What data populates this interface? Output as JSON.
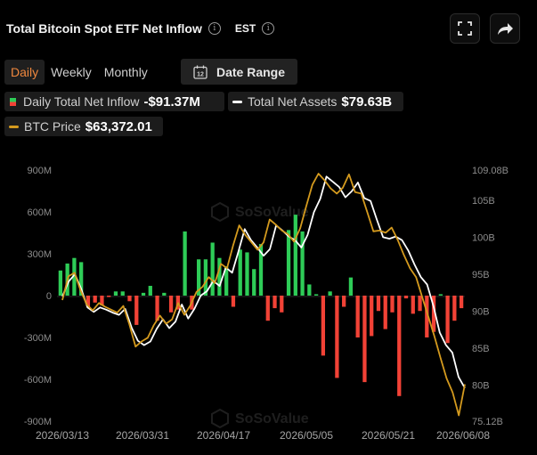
{
  "header": {
    "title": "Total Bitcoin Spot ETF Net Inflow",
    "timezone": "EST"
  },
  "tabs": [
    {
      "label": "Daily",
      "active": true
    },
    {
      "label": "Weekly",
      "active": false
    },
    {
      "label": "Monthly",
      "active": false
    }
  ],
  "date_range_label": "Date Range",
  "calendar_day": "12",
  "legend": {
    "inflow_label": "Daily Total Net Inflow",
    "inflow_value": "-$91.37M",
    "assets_label": "Total Net Assets",
    "assets_value": "$79.63B",
    "price_label": "BTC Price",
    "price_value": "$63,372.01"
  },
  "watermark": "SoSoValue",
  "colors": {
    "positive": "#2ecc57",
    "negative": "#f24236",
    "assets_line": "#ffffff",
    "price_line": "#d49a1e",
    "active_tab": "#f0883e"
  },
  "chart_data": {
    "type": "bar",
    "x_tick_labels": [
      "2026/03/13",
      "2026/03/31",
      "2026/04/17",
      "2026/05/05",
      "2026/05/21",
      "2026/06/08"
    ],
    "left_axis": {
      "label": "",
      "ticks": [
        "900M",
        "600M",
        "300M",
        "0",
        "-300M",
        "-600M",
        "-900M"
      ],
      "range": [
        -900,
        900
      ],
      "unit": "M"
    },
    "right_axis": {
      "label": "",
      "ticks": [
        "109.08B",
        "105B",
        "100B",
        "95B",
        "90B",
        "85B",
        "80B",
        "75.12B"
      ],
      "range": [
        75.12,
        109.08
      ],
      "unit": "B"
    },
    "series": [
      {
        "name": "Daily Total Net Inflow",
        "type": "bar",
        "axis": "left",
        "values": [
          180,
          230,
          270,
          240,
          -80,
          -50,
          -70,
          -10,
          30,
          30,
          -40,
          -210,
          20,
          70,
          -180,
          20,
          -120,
          -100,
          460,
          -100,
          260,
          260,
          380,
          270,
          210,
          -80,
          330,
          310,
          190,
          370,
          -180,
          -90,
          -120,
          470,
          580,
          460,
          80,
          10,
          -430,
          30,
          -590,
          -80,
          130,
          -300,
          -620,
          -290,
          -110,
          -240,
          -120,
          -720,
          -20,
          -130,
          -110,
          -300,
          -260,
          10,
          -340,
          -180,
          -90
        ]
      },
      {
        "name": "Total Net Assets",
        "type": "line",
        "axis": "right",
        "values": [
          92,
          94,
          95,
          93,
          90.5,
          89.9,
          90.5,
          90.2,
          89.8,
          89.5,
          90.3,
          87.8,
          86,
          85.4,
          85.9,
          87.6,
          88.9,
          87.7,
          88.6,
          90.9,
          89,
          90.3,
          92.1,
          92.7,
          94.1,
          93.4,
          95.9,
          95.2,
          98.1,
          101.1,
          99.6,
          98.6,
          97.5,
          98.4,
          101.6,
          100.9,
          100.1,
          99.6,
          98.6,
          100.3,
          103.4,
          105.2,
          108.2,
          107.5,
          106.8,
          105.4,
          106.2,
          107.4,
          105.3,
          104.9,
          102.4,
          100,
          99.8,
          100.1,
          99.6,
          98.2,
          96.3,
          94.6,
          93.6,
          90.7,
          87.1,
          85.4,
          84.4,
          81.1,
          79.6
        ]
      },
      {
        "name": "BTC Price",
        "type": "line",
        "axis": "right",
        "values": [
          91.5,
          94.7,
          95.2,
          92.8,
          90.9,
          90.1,
          91.1,
          90.6,
          90.2,
          89.8,
          90.7,
          88.2,
          85.2,
          85.9,
          86.4,
          88.1,
          89.4,
          88.3,
          88.9,
          91.1,
          89.5,
          90.8,
          92.6,
          93.3,
          94.6,
          93.8,
          96.4,
          95.8,
          98.9,
          101.6,
          100.3,
          99.3,
          98.3,
          99.3,
          102.4,
          101.7,
          100.9,
          100.4,
          99.4,
          101.2,
          104.2,
          107.1,
          108.6,
          107.7,
          106.6,
          105.9,
          106.7,
          108.5,
          106.1,
          105.9,
          103.4,
          100.8,
          100.9,
          100.6,
          101.3,
          99.6,
          97.6,
          95.8,
          94.6,
          91.9,
          89.3,
          86.6,
          83.7,
          80.9,
          79,
          75.9,
          80.1
        ]
      }
    ],
    "grid": false,
    "legend_position": "top-left"
  }
}
